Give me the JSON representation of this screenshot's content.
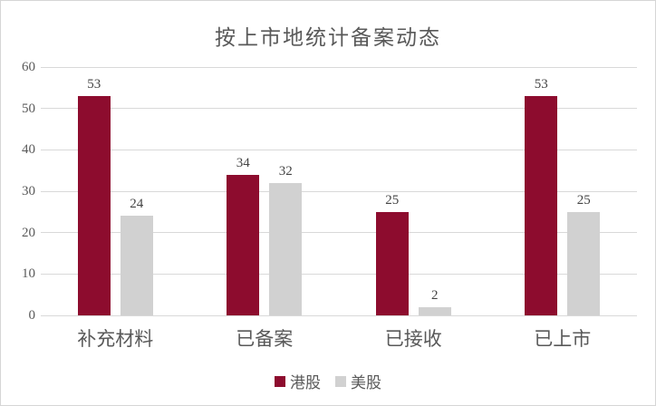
{
  "chart_data": {
    "type": "bar",
    "title": "按上市地统计备案动态",
    "categories": [
      "补充材料",
      "已备案",
      "已接收",
      "已上市"
    ],
    "series": [
      {
        "name": "港股",
        "color": "#8D0C2E",
        "values": [
          53,
          34,
          25,
          53
        ]
      },
      {
        "name": "美股",
        "color": "#D1D1D1",
        "values": [
          24,
          32,
          2,
          25
        ]
      }
    ],
    "ylim": [
      0,
      60
    ],
    "yticks": [
      0,
      10,
      20,
      30,
      40,
      50,
      60
    ],
    "grid": "horizontal",
    "gridline_color": "#D9D9D9",
    "legend_position": "bottom",
    "data_labels": true
  },
  "colors": {
    "frame_border": "#D6D6D6",
    "title_text": "#595959",
    "axis_text": "#595959",
    "label_text": "#444444"
  }
}
